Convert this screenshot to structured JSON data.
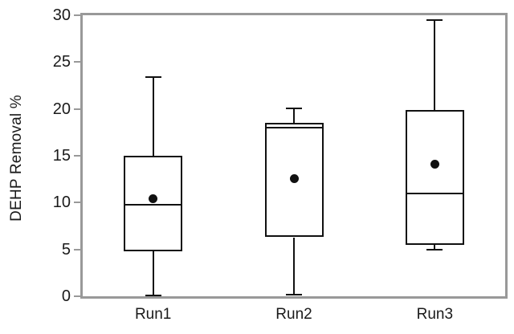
{
  "chart_data": {
    "type": "boxplot",
    "title": "",
    "xlabel": "",
    "ylabel": "DEHP Removal %",
    "categories": [
      "Run1",
      "Run2",
      "Run3"
    ],
    "y_axis": {
      "min": 0,
      "max": 30,
      "tick_interval": 5,
      "ticks": [
        "0",
        "5",
        "10",
        "15",
        "20",
        "25",
        "30"
      ]
    },
    "grid": false,
    "legend": "none",
    "series": [
      {
        "name": "Run1",
        "whisker_low": 0.1,
        "q1": 4.8,
        "median": 9.8,
        "q3": 15.0,
        "whisker_high": 23.4,
        "mean": 10.4
      },
      {
        "name": "Run2",
        "whisker_low": 0.2,
        "q1": 6.3,
        "median": 18.0,
        "q3": 18.5,
        "whisker_high": 20.1,
        "mean": 12.6
      },
      {
        "name": "Run3",
        "whisker_low": 5.0,
        "q1": 5.5,
        "median": 11.0,
        "q3": 19.9,
        "whisker_high": 29.5,
        "mean": 14.1
      }
    ],
    "colors": {
      "frame": "#999999",
      "line": "#111111",
      "mean_dot": "#111111",
      "text": "#1a1a1a",
      "background": "#ffffff",
      "box_fill": "#ffffff"
    }
  }
}
